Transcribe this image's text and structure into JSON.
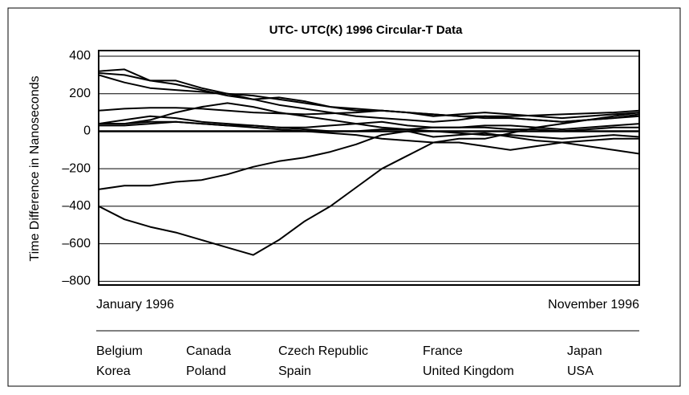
{
  "chart_data": {
    "type": "line",
    "title": "UTC- UTC(K) 1996 Circular-T Data",
    "y_label": "Time Difference in Nanoseconds",
    "x_axis_labels": [
      "January 1996",
      "November 1996"
    ],
    "ylim": [
      -820,
      430
    ],
    "yticks": [
      400,
      200,
      0,
      {
        "value": -200,
        "label": "–200"
      },
      {
        "value": -400,
        "label": "–400"
      },
      {
        "value": -600,
        "label": "–600"
      },
      {
        "value": -800,
        "label": "–800"
      }
    ],
    "grid": true,
    "series": [
      {
        "name": "Belgium",
        "color": "#000000",
        "values": [
          40,
          40,
          60,
          100,
          130,
          150,
          130,
          100,
          80,
          60,
          40,
          20,
          10,
          0,
          -10,
          -20,
          -20,
          -30,
          -40,
          -30,
          -20,
          -30
        ]
      },
      {
        "name": "Canada",
        "color": "#000000",
        "values": [
          110,
          120,
          125,
          125,
          120,
          110,
          100,
          95,
          90,
          95,
          100,
          110,
          100,
          90,
          80,
          80,
          80,
          85,
          90,
          95,
          100,
          110
        ]
      },
      {
        "name": "Czech Republic",
        "color": "#000000",
        "values": [
          -400,
          -470,
          -510,
          -540,
          -580,
          -620,
          -660,
          -580,
          -480,
          -400,
          -300,
          -200,
          -130,
          -60,
          -40,
          -40,
          -10,
          20,
          40,
          60,
          80,
          100
        ]
      },
      {
        "name": "France",
        "color": "#000000",
        "values": [
          -310,
          -290,
          -290,
          -270,
          -260,
          -230,
          -190,
          -160,
          -140,
          -110,
          -70,
          -20,
          0,
          -30,
          -20,
          -10,
          -30,
          -50,
          -60,
          -80,
          -100,
          -120
        ]
      },
      {
        "name": "Japan",
        "color": "#000000",
        "values": [
          310,
          300,
          270,
          250,
          220,
          190,
          170,
          140,
          120,
          100,
          80,
          70,
          60,
          50,
          60,
          80,
          70,
          60,
          50,
          60,
          70,
          90
        ]
      },
      {
        "name": "Korea",
        "color": "#000000",
        "values": [
          320,
          330,
          270,
          270,
          230,
          200,
          170,
          180,
          160,
          130,
          110,
          110,
          100,
          80,
          90,
          100,
          90,
          80,
          70,
          80,
          90,
          100
        ]
      },
      {
        "name": "Poland",
        "color": "#000000",
        "values": [
          40,
          60,
          80,
          70,
          50,
          40,
          30,
          20,
          20,
          30,
          40,
          50,
          30,
          20,
          20,
          30,
          30,
          20,
          10,
          20,
          30,
          40
        ]
      },
      {
        "name": "Spain",
        "color": "#000000",
        "values": [
          30,
          30,
          40,
          50,
          40,
          30,
          20,
          10,
          0,
          -10,
          -20,
          -40,
          -50,
          -60,
          -60,
          -80,
          -100,
          -80,
          -60,
          -50,
          -40,
          -40
        ]
      },
      {
        "name": "United Kingdom",
        "color": "#000000",
        "values": [
          300,
          260,
          230,
          220,
          210,
          200,
          190,
          170,
          150,
          130,
          120,
          110,
          100,
          90,
          80,
          70,
          70,
          60,
          50,
          60,
          70,
          80
        ]
      },
      {
        "name": "USA",
        "color": "#000000",
        "values": [
          40,
          40,
          50,
          50,
          40,
          30,
          30,
          20,
          10,
          0,
          0,
          10,
          10,
          20,
          20,
          20,
          10,
          10,
          0,
          10,
          20,
          20
        ]
      }
    ]
  }
}
